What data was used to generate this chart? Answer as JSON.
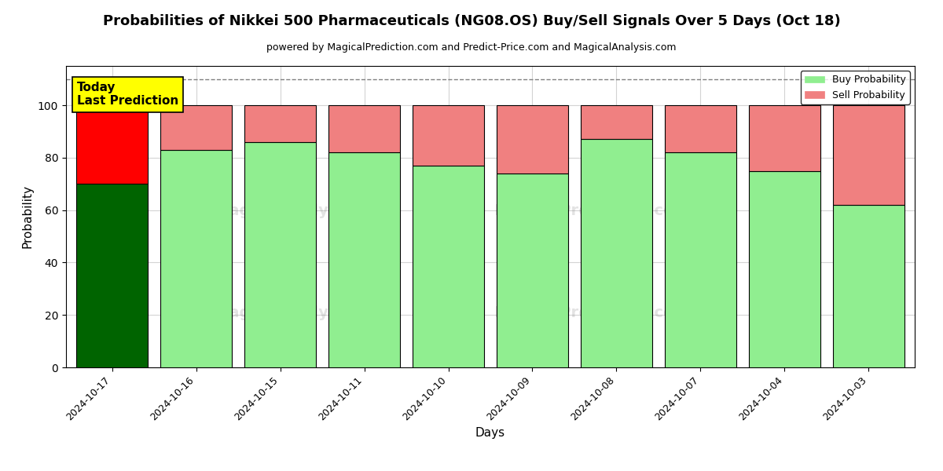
{
  "title": "Probabilities of Nikkei 500 Pharmaceuticals (NG08.OS) Buy/Sell Signals Over 5 Days (Oct 18)",
  "subtitle": "powered by MagicalPrediction.com and Predict-Price.com and MagicalAnalysis.com",
  "xlabel": "Days",
  "ylabel": "Probability",
  "dates": [
    "2024-10-17",
    "2024-10-16",
    "2024-10-15",
    "2024-10-11",
    "2024-10-10",
    "2024-10-09",
    "2024-10-08",
    "2024-10-07",
    "2024-10-04",
    "2024-10-03"
  ],
  "buy_values": [
    70,
    83,
    86,
    82,
    77,
    74,
    87,
    82,
    75,
    62
  ],
  "sell_values": [
    30,
    17,
    14,
    18,
    23,
    26,
    13,
    18,
    25,
    38
  ],
  "today_bar_buy_color": "#006400",
  "today_bar_sell_color": "#FF0000",
  "other_bar_buy_color": "#90EE90",
  "other_bar_sell_color": "#F08080",
  "today_label_bg": "#FFFF00",
  "dashed_line_y": 110,
  "ylim": [
    0,
    115
  ],
  "yticks": [
    0,
    20,
    40,
    60,
    80,
    100
  ],
  "legend_buy_color": "#90EE90",
  "legend_sell_color": "#F08080",
  "bar_edge_color": "#000000",
  "bar_linewidth": 0.8,
  "bar_width": 0.85,
  "fig_width": 12,
  "fig_height": 6
}
